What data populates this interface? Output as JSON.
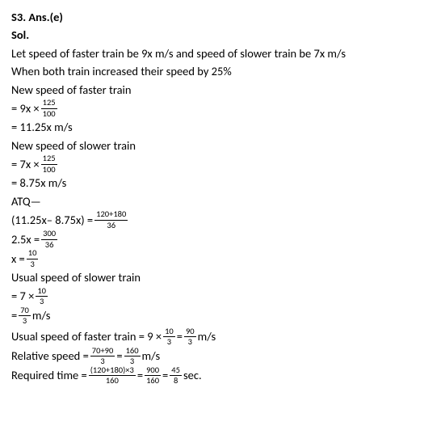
{
  "header": {
    "answer_label": "S3. Ans.(e)",
    "sol_label": "Sol."
  },
  "lines": {
    "l1": "Let speed of faster train be 9x m/s and speed of slower train be 7x m/s",
    "l2": "When both train increased their speed by 25%",
    "l3": "New speed of faster train",
    "l3eq_pre": "= 9x × ",
    "l3eq_num": "125",
    "l3eq_den": "100",
    "l4": "= 11.25x  m/s",
    "l5": "New speed of slower train",
    "l5eq_pre": "= 7x × ",
    "l5eq_num": "125",
    "l5eq_den": "100",
    "l6": "= 8.75x  m/s",
    "l7": "ATQ—",
    "l8_pre": "(11.25x– 8.75x) = ",
    "l8_num": "120+180",
    "l8_den": "36",
    "l9_pre": "2.5x = ",
    "l9_num": "300",
    "l9_den": "36",
    "l10_pre": "x = ",
    "l10_num": "10",
    "l10_den": "3",
    "l11": "Usual speed of slower train",
    "l11eq_pre": "= 7 × ",
    "l11eq_num": "10",
    "l11eq_den": "3",
    "l12_pre": "= ",
    "l12_num": "70",
    "l12_den": "3",
    "l12_post": " m/s",
    "l13_pre": "Usual speed of faster train = 9 × ",
    "l13_n1": "10",
    "l13_d1": "3",
    "l13_mid": " = ",
    "l13_n2": "90",
    "l13_d2": "3",
    "l13_post": " m/s",
    "l14_pre": "Relative speed = ",
    "l14_n1": "70+90",
    "l14_d1": "3",
    "l14_mid": " = ",
    "l14_n2": "160",
    "l14_d2": "3",
    "l14_post": " m/s",
    "l15_pre": "Required time = ",
    "l15_n1": "(120+180)×3",
    "l15_d1": "160",
    "l15_mid1": " = ",
    "l15_n2": "900",
    "l15_d2": "160",
    "l15_mid2": " = ",
    "l15_n3": "45",
    "l15_d3": "8",
    "l15_post": " sec."
  }
}
